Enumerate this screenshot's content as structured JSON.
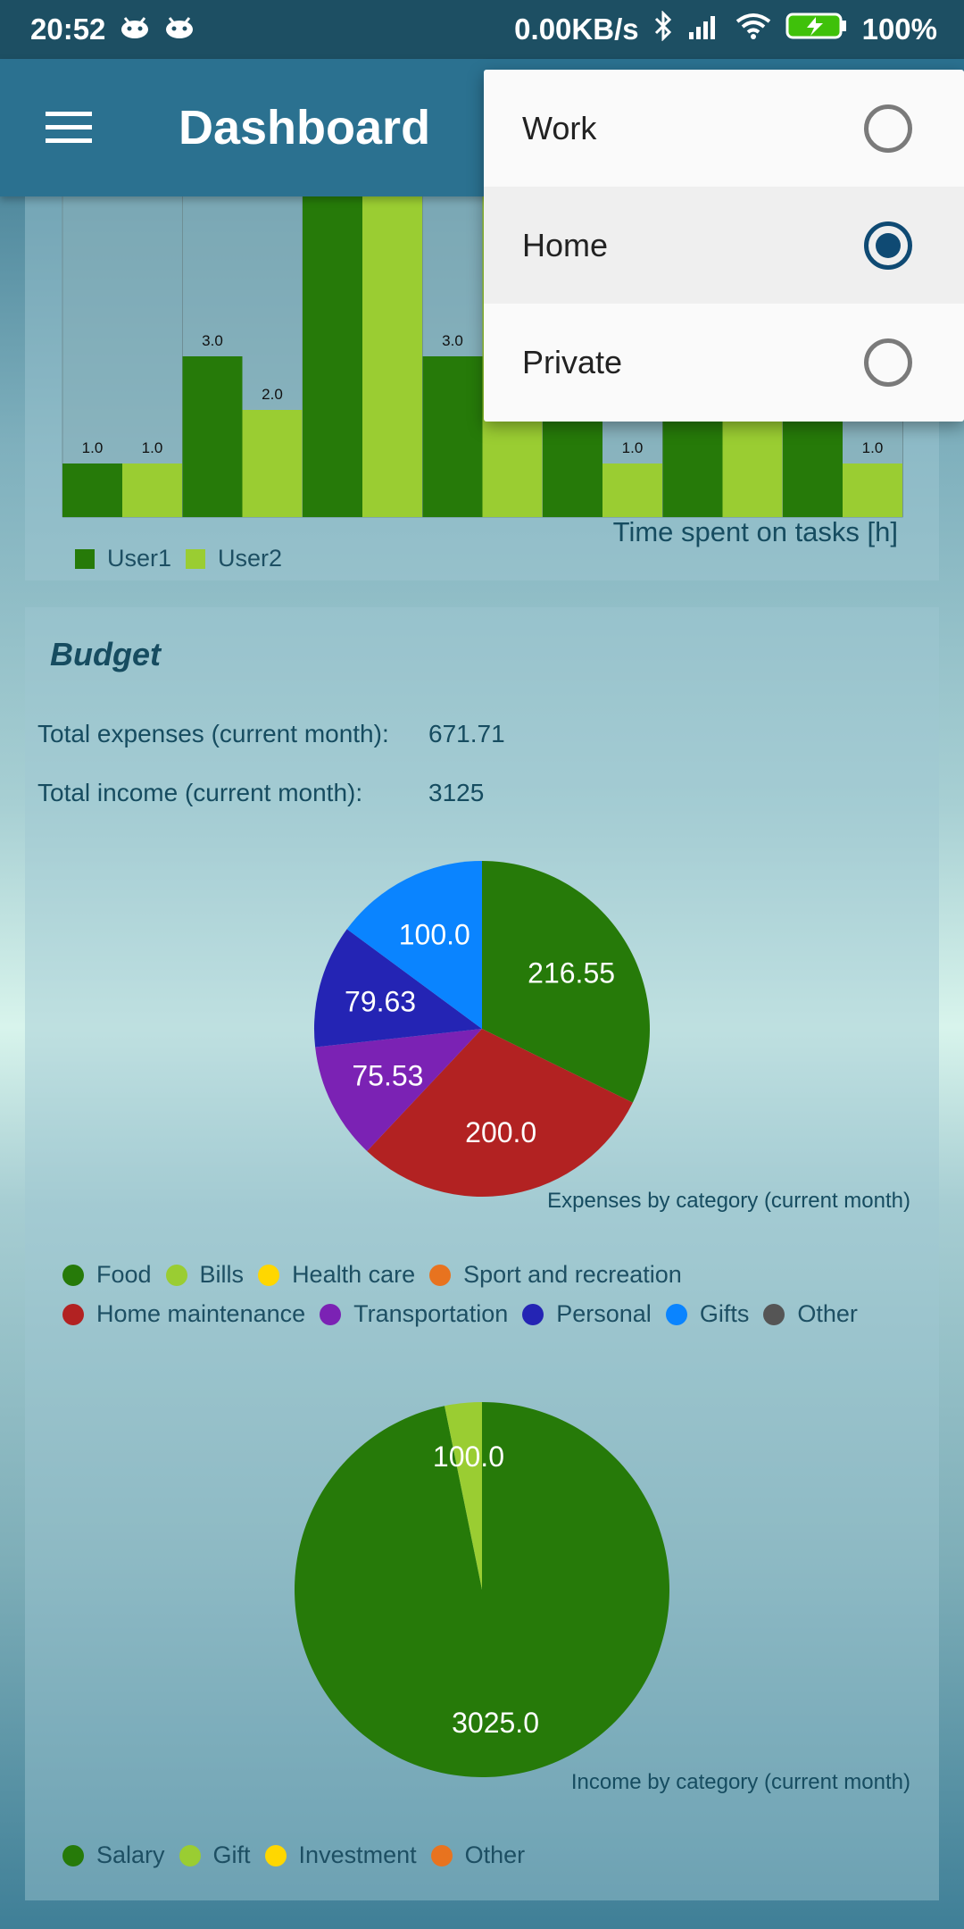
{
  "status_bar": {
    "time": "20:52",
    "net_speed": "0.00KB/s",
    "battery": "100%",
    "icons": [
      "android-icon",
      "android-icon",
      "bluetooth-icon",
      "signal-icon",
      "wifi-icon",
      "battery-charging-icon"
    ]
  },
  "app_bar": {
    "title": "Dashboard",
    "menu_icon": "hamburger-menu-icon"
  },
  "popup": {
    "options": [
      {
        "label": "Work",
        "selected": false
      },
      {
        "label": "Home",
        "selected": true
      },
      {
        "label": "Private",
        "selected": false
      }
    ]
  },
  "tasks_chart": {
    "caption": "Time spent on tasks [h]",
    "legend": [
      {
        "label": "User1",
        "color": "#267a09"
      },
      {
        "label": "User2",
        "color": "#9acd32"
      }
    ]
  },
  "budget": {
    "title": "Budget",
    "expenses_label": "Total expenses (current month):",
    "expenses_value": "671.71",
    "income_label": "Total income (current month):",
    "income_value": "3125",
    "expenses_legend": [
      {
        "label": "Food",
        "color": "#267a09"
      },
      {
        "label": "Bills",
        "color": "#9acd32"
      },
      {
        "label": "Health care",
        "color": "#ffd700"
      },
      {
        "label": "Sport and recreation",
        "color": "#e8731f"
      },
      {
        "label": "Home maintenance",
        "color": "#b22222"
      },
      {
        "label": "Transportation",
        "color": "#7b22b4"
      },
      {
        "label": "Personal",
        "color": "#2424b4"
      },
      {
        "label": "Gifts",
        "color": "#0a84ff"
      },
      {
        "label": "Other",
        "color": "#555555"
      }
    ],
    "income_legend": [
      {
        "label": "Salary",
        "color": "#267a09"
      },
      {
        "label": "Gift",
        "color": "#9acd32"
      },
      {
        "label": "Investment",
        "color": "#ffd700"
      },
      {
        "label": "Other",
        "color": "#e8731f"
      }
    ]
  },
  "chart_data": [
    {
      "type": "bar",
      "caption": "Time spent on tasks [h]",
      "categories": [
        "",
        "",
        "",
        "",
        "",
        "",
        ""
      ],
      "series": [
        {
          "name": "User1",
          "values": [
            1.0,
            3.0,
            null,
            3.0,
            null,
            null,
            null
          ],
          "color": "#267a09"
        },
        {
          "name": "User2",
          "values": [
            1.0,
            2.0,
            null,
            null,
            1.0,
            null,
            1.0
          ],
          "color": "#9acd32"
        }
      ],
      "note": "partially hidden behind popup; only visible data labels recorded"
    },
    {
      "type": "pie",
      "caption": "Expenses by category (current month)",
      "slices": [
        {
          "label": "Food",
          "value": 216.55,
          "color": "#267a09",
          "text": "216.55"
        },
        {
          "label": "Home maintenance",
          "value": 200.0,
          "color": "#b22222",
          "text": "200.0"
        },
        {
          "label": "Transportation",
          "value": 75.53,
          "color": "#7b22b4",
          "text": "75.53"
        },
        {
          "label": "Personal",
          "value": 79.63,
          "color": "#2424b4",
          "text": "79.63"
        },
        {
          "label": "Gifts",
          "value": 100.0,
          "color": "#0a84ff",
          "text": "100.0"
        }
      ]
    },
    {
      "type": "pie",
      "caption": "Income by category (current month)",
      "slices": [
        {
          "label": "Salary",
          "value": 3025.0,
          "color": "#267a09",
          "text": "3025.0"
        },
        {
          "label": "Gift",
          "value": 100.0,
          "color": "#9acd32",
          "text": "100.0"
        }
      ]
    }
  ]
}
